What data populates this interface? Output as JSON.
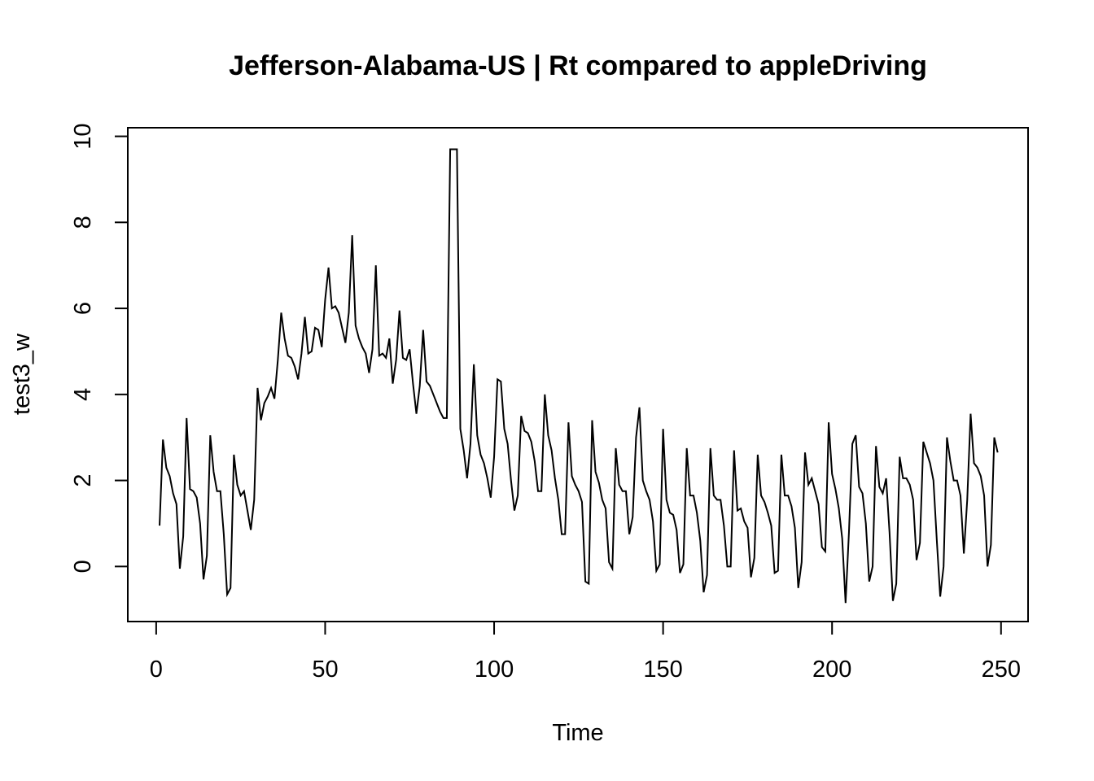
{
  "chart_data": {
    "type": "line",
    "title": "Jefferson-Alabama-US | Rt compared to appleDriving",
    "xlabel": "Time",
    "ylabel": "test3_w",
    "xlim": [
      -8.4,
      258
    ],
    "ylim": [
      -1.28,
      10.2
    ],
    "x_ticks": [
      0,
      50,
      100,
      150,
      200,
      250
    ],
    "y_ticks": [
      0,
      2,
      4,
      6,
      8,
      10
    ],
    "x_tick_labels": [
      "0",
      "50",
      "100",
      "150",
      "200",
      "250"
    ],
    "y_tick_labels": [
      "0",
      "2",
      "4",
      "6",
      "8",
      "10"
    ],
    "grid": false,
    "legend": "none",
    "line_color": "#000000",
    "series": [
      {
        "x_start": 1,
        "values": [
          0.95,
          2.95,
          2.3,
          2.1,
          1.7,
          1.45,
          -0.05,
          0.7,
          3.45,
          1.8,
          1.75,
          1.6,
          1.0,
          -0.3,
          0.25,
          3.05,
          2.2,
          1.75,
          1.75,
          0.75,
          -0.65,
          -0.5,
          2.6,
          1.9,
          1.65,
          1.75,
          1.3,
          0.85,
          1.55,
          4.15,
          3.4,
          3.8,
          3.95,
          4.15,
          3.9,
          4.8,
          5.9,
          5.3,
          4.9,
          4.85,
          4.65,
          4.35,
          4.95,
          5.8,
          4.95,
          5.0,
          5.55,
          5.5,
          5.1,
          6.2,
          6.95,
          6.0,
          6.05,
          5.9,
          5.55,
          5.2,
          5.9,
          7.7,
          5.6,
          5.3,
          5.1,
          4.95,
          4.5,
          5.05,
          7.0,
          4.9,
          4.95,
          4.85,
          5.3,
          4.25,
          4.8,
          5.95,
          4.85,
          4.8,
          5.05,
          4.25,
          3.55,
          4.2,
          5.5,
          4.3,
          4.2,
          4.0,
          3.8,
          3.6,
          3.45,
          3.45,
          9.7,
          9.7,
          9.7,
          3.2,
          2.7,
          2.05,
          2.85,
          4.7,
          3.05,
          2.6,
          2.4,
          2.05,
          1.6,
          2.55,
          4.35,
          4.3,
          3.2,
          2.85,
          2.0,
          1.3,
          1.65,
          3.5,
          3.15,
          3.1,
          2.9,
          2.45,
          1.75,
          1.75,
          4.0,
          3.05,
          2.7,
          2.05,
          1.55,
          0.75,
          0.75,
          3.35,
          2.1,
          1.9,
          1.75,
          1.5,
          -0.35,
          -0.4,
          3.4,
          2.2,
          1.95,
          1.55,
          1.35,
          0.1,
          -0.05,
          2.75,
          1.9,
          1.75,
          1.75,
          0.75,
          1.15,
          3.0,
          3.7,
          2.0,
          1.75,
          1.55,
          1.05,
          -0.1,
          0.05,
          3.2,
          1.55,
          1.25,
          1.2,
          0.85,
          -0.15,
          0.05,
          2.75,
          1.65,
          1.65,
          1.25,
          0.6,
          -0.6,
          -0.2,
          2.75,
          1.65,
          1.55,
          1.55,
          0.95,
          0.0,
          0.0,
          2.7,
          1.3,
          1.35,
          1.05,
          0.9,
          -0.25,
          0.2,
          2.6,
          1.65,
          1.5,
          1.25,
          0.95,
          -0.15,
          -0.1,
          2.6,
          1.65,
          1.65,
          1.4,
          0.9,
          -0.5,
          0.1,
          2.65,
          1.9,
          2.05,
          1.75,
          1.45,
          0.45,
          0.35,
          3.35,
          2.15,
          1.8,
          1.35,
          0.65,
          -0.85,
          0.8,
          2.85,
          3.05,
          1.85,
          1.7,
          1.0,
          -0.35,
          0.0,
          2.8,
          1.85,
          1.7,
          2.05,
          0.8,
          -0.8,
          -0.4,
          2.55,
          2.05,
          2.05,
          1.9,
          1.55,
          0.15,
          0.55,
          2.9,
          2.65,
          2.4,
          2.0,
          0.6,
          -0.7,
          0.0,
          3.0,
          2.45,
          2.0,
          2.0,
          1.65,
          0.3,
          1.55,
          3.55,
          2.4,
          2.3,
          2.1,
          1.65,
          0.0,
          0.5,
          3.0,
          2.65
        ]
      }
    ]
  }
}
